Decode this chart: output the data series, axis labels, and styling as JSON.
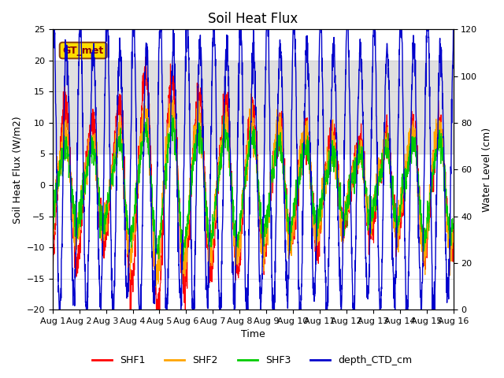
{
  "title": "Soil Heat Flux",
  "xlabel": "Time",
  "ylabel_left": "Soil Heat Flux (W/m2)",
  "ylabel_right": "Water Level (cm)",
  "ylim_left": [
    -20,
    25
  ],
  "ylim_right": [
    0,
    120
  ],
  "xlim": [
    0,
    15
  ],
  "xtick_labels": [
    "Aug 1",
    "Aug 2",
    "Aug 3",
    "Aug 4",
    "Aug 5",
    "Aug 6",
    "Aug 7",
    "Aug 8",
    "Aug 9",
    "Aug 10",
    "Aug 11",
    "Aug 12",
    "Aug 13",
    "Aug 14",
    "Aug 15",
    "Aug 16"
  ],
  "xtick_positions": [
    0,
    1,
    2,
    3,
    4,
    5,
    6,
    7,
    8,
    9,
    10,
    11,
    12,
    13,
    14,
    15
  ],
  "yticks_left": [
    -20,
    -15,
    -10,
    -5,
    0,
    5,
    10,
    15,
    20,
    25
  ],
  "yticks_right": [
    0,
    20,
    40,
    60,
    80,
    100,
    120
  ],
  "colors": {
    "SHF1": "#ff0000",
    "SHF2": "#ffa500",
    "SHF3": "#00cc00",
    "depth_CTD_cm": "#0000cc"
  },
  "annotation_text": "GT_met",
  "annotation_box_facecolor": "#ffdd00",
  "annotation_box_edgecolor": "#8B4513",
  "bg_gray_ymin": 5,
  "bg_gray_ymax": 20,
  "bg_gray_color": "#d3d3d3",
  "bg_gray_alpha": 0.7,
  "plot_facecolor": "#ffffff",
  "legend_labels": [
    "SHF1",
    "SHF2",
    "SHF3",
    "depth_CTD_cm"
  ]
}
